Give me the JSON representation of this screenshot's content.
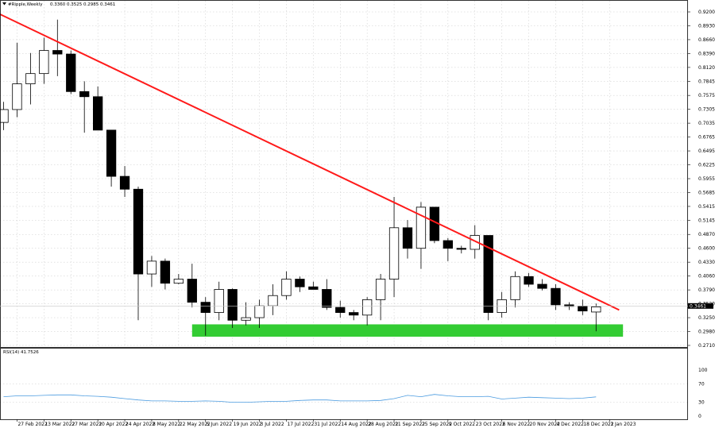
{
  "header": {
    "symbol": "#Ripple,Weekly",
    "ohlc": "0.3360 0.3525 0.2985 0.3461"
  },
  "price_axis": {
    "ticks": [
      "0.9200",
      "0.8930",
      "0.8660",
      "0.8390",
      "0.8120",
      "0.7845",
      "0.7575",
      "0.7305",
      "0.7035",
      "0.6765",
      "0.6495",
      "0.6225",
      "0.5955",
      "0.5685",
      "0.5415",
      "0.5145",
      "0.4870",
      "0.4600",
      "0.4330",
      "0.4060",
      "0.3790",
      "0.3520",
      "0.3250",
      "0.2980",
      "0.2710"
    ],
    "current_label": "0.3461"
  },
  "rsi": {
    "label": "RSI(14) 41.7526",
    "ticks": [
      "100",
      "70",
      "30",
      "0"
    ]
  },
  "date_labels": [
    "27 Feb 2022",
    "13 Mar 2022",
    "27 Mar 2022",
    "10 Apr 2022",
    "24 Apr 2022",
    "8 May 2022",
    "22 May 2022",
    "5 Jun 2022",
    "19 Jun 2022",
    "3 Jul 2022",
    "17 Jul 2022",
    "31 Jul 2022",
    "14 Aug 2022",
    "28 Aug 2022",
    "11 Sep 2022",
    "25 Sep 2022",
    "9 Oct 2022",
    "23 Oct 2022",
    "6 Nov 2022",
    "20 Nov 2022",
    "4 Dec 2022",
    "18 Dec 2022",
    "1 Jan 2023"
  ],
  "colors": {
    "trendline": "#ff1a1a",
    "support_zone": "#33cc33",
    "rsi_line": "#4a9be0",
    "bear_candle": "#000000",
    "bull_candle": "#ffffff",
    "grid": "#c8c8c8"
  },
  "chart_data": [
    {
      "type": "candlestick",
      "timeframe": "weekly",
      "ylim": [
        0.271,
        0.92
      ],
      "first_candle_date": "20 Feb 2022",
      "candles": [
        {
          "o": 0.705,
          "h": 0.745,
          "l": 0.69,
          "c": 0.73
        },
        {
          "o": 0.73,
          "h": 0.86,
          "l": 0.715,
          "c": 0.78
        },
        {
          "o": 0.78,
          "h": 0.84,
          "l": 0.74,
          "c": 0.8
        },
        {
          "o": 0.8,
          "h": 0.87,
          "l": 0.78,
          "c": 0.845
        },
        {
          "o": 0.845,
          "h": 0.905,
          "l": 0.795,
          "c": 0.838
        },
        {
          "o": 0.838,
          "h": 0.845,
          "l": 0.76,
          "c": 0.765
        },
        {
          "o": 0.765,
          "h": 0.785,
          "l": 0.685,
          "c": 0.755
        },
        {
          "o": 0.755,
          "h": 0.775,
          "l": 0.69,
          "c": 0.69
        },
        {
          "o": 0.69,
          "h": 0.69,
          "l": 0.58,
          "c": 0.6
        },
        {
          "o": 0.6,
          "h": 0.62,
          "l": 0.56,
          "c": 0.575
        },
        {
          "o": 0.575,
          "h": 0.58,
          "l": 0.32,
          "c": 0.41
        },
        {
          "o": 0.41,
          "h": 0.445,
          "l": 0.385,
          "c": 0.435
        },
        {
          "o": 0.435,
          "h": 0.44,
          "l": 0.38,
          "c": 0.392
        },
        {
          "o": 0.392,
          "h": 0.41,
          "l": 0.39,
          "c": 0.4
        },
        {
          "o": 0.4,
          "h": 0.43,
          "l": 0.345,
          "c": 0.355
        },
        {
          "o": 0.355,
          "h": 0.365,
          "l": 0.29,
          "c": 0.335
        },
        {
          "o": 0.335,
          "h": 0.395,
          "l": 0.32,
          "c": 0.38
        },
        {
          "o": 0.38,
          "h": 0.382,
          "l": 0.305,
          "c": 0.32
        },
        {
          "o": 0.32,
          "h": 0.355,
          "l": 0.31,
          "c": 0.325
        },
        {
          "o": 0.325,
          "h": 0.36,
          "l": 0.305,
          "c": 0.348
        },
        {
          "o": 0.348,
          "h": 0.39,
          "l": 0.33,
          "c": 0.368
        },
        {
          "o": 0.368,
          "h": 0.415,
          "l": 0.36,
          "c": 0.4
        },
        {
          "o": 0.4,
          "h": 0.405,
          "l": 0.375,
          "c": 0.385
        },
        {
          "o": 0.385,
          "h": 0.395,
          "l": 0.38,
          "c": 0.38
        },
        {
          "o": 0.38,
          "h": 0.4,
          "l": 0.34,
          "c": 0.345
        },
        {
          "o": 0.345,
          "h": 0.358,
          "l": 0.325,
          "c": 0.335
        },
        {
          "o": 0.335,
          "h": 0.34,
          "l": 0.32,
          "c": 0.33
        },
        {
          "o": 0.33,
          "h": 0.365,
          "l": 0.31,
          "c": 0.36
        },
        {
          "o": 0.36,
          "h": 0.41,
          "l": 0.32,
          "c": 0.4
        },
        {
          "o": 0.4,
          "h": 0.56,
          "l": 0.365,
          "c": 0.5
        },
        {
          "o": 0.5,
          "h": 0.515,
          "l": 0.44,
          "c": 0.46
        },
        {
          "o": 0.46,
          "h": 0.55,
          "l": 0.42,
          "c": 0.54
        },
        {
          "o": 0.54,
          "h": 0.54,
          "l": 0.47,
          "c": 0.475
        },
        {
          "o": 0.475,
          "h": 0.48,
          "l": 0.435,
          "c": 0.46
        },
        {
          "o": 0.46,
          "h": 0.465,
          "l": 0.45,
          "c": 0.458
        },
        {
          "o": 0.458,
          "h": 0.505,
          "l": 0.44,
          "c": 0.485
        },
        {
          "o": 0.485,
          "h": 0.485,
          "l": 0.32,
          "c": 0.335
        },
        {
          "o": 0.335,
          "h": 0.375,
          "l": 0.325,
          "c": 0.36
        },
        {
          "o": 0.36,
          "h": 0.415,
          "l": 0.345,
          "c": 0.405
        },
        {
          "o": 0.405,
          "h": 0.412,
          "l": 0.385,
          "c": 0.39
        },
        {
          "o": 0.39,
          "h": 0.4,
          "l": 0.378,
          "c": 0.382
        },
        {
          "o": 0.382,
          "h": 0.39,
          "l": 0.34,
          "c": 0.35
        },
        {
          "o": 0.35,
          "h": 0.355,
          "l": 0.34,
          "c": 0.347
        },
        {
          "o": 0.347,
          "h": 0.36,
          "l": 0.33,
          "c": 0.338
        },
        {
          "o": 0.336,
          "h": 0.3525,
          "l": 0.2985,
          "c": 0.3461
        }
      ],
      "trendline": {
        "from": {
          "date": "10 Feb 2022",
          "price": 0.93
        },
        "to": {
          "date": "6 Jan 2023",
          "price": 0.34
        }
      },
      "support_zone": {
        "from_date": "29 May 2022",
        "to_date": "8 Jan 2023",
        "price_low": 0.288,
        "price_high": 0.312
      }
    },
    {
      "type": "line",
      "title": "RSI(14) 41.7526",
      "ylim": [
        0,
        100
      ],
      "values": [
        42,
        44,
        44,
        45,
        46,
        46,
        44,
        43,
        41,
        38,
        35,
        33,
        33,
        32,
        32,
        33,
        32,
        30,
        30,
        31,
        32,
        32,
        34,
        35,
        35,
        33,
        33,
        33,
        34,
        38,
        45,
        42,
        47,
        44,
        42,
        42,
        43,
        37,
        39,
        41,
        40,
        39,
        38,
        39,
        41.75
      ]
    }
  ]
}
